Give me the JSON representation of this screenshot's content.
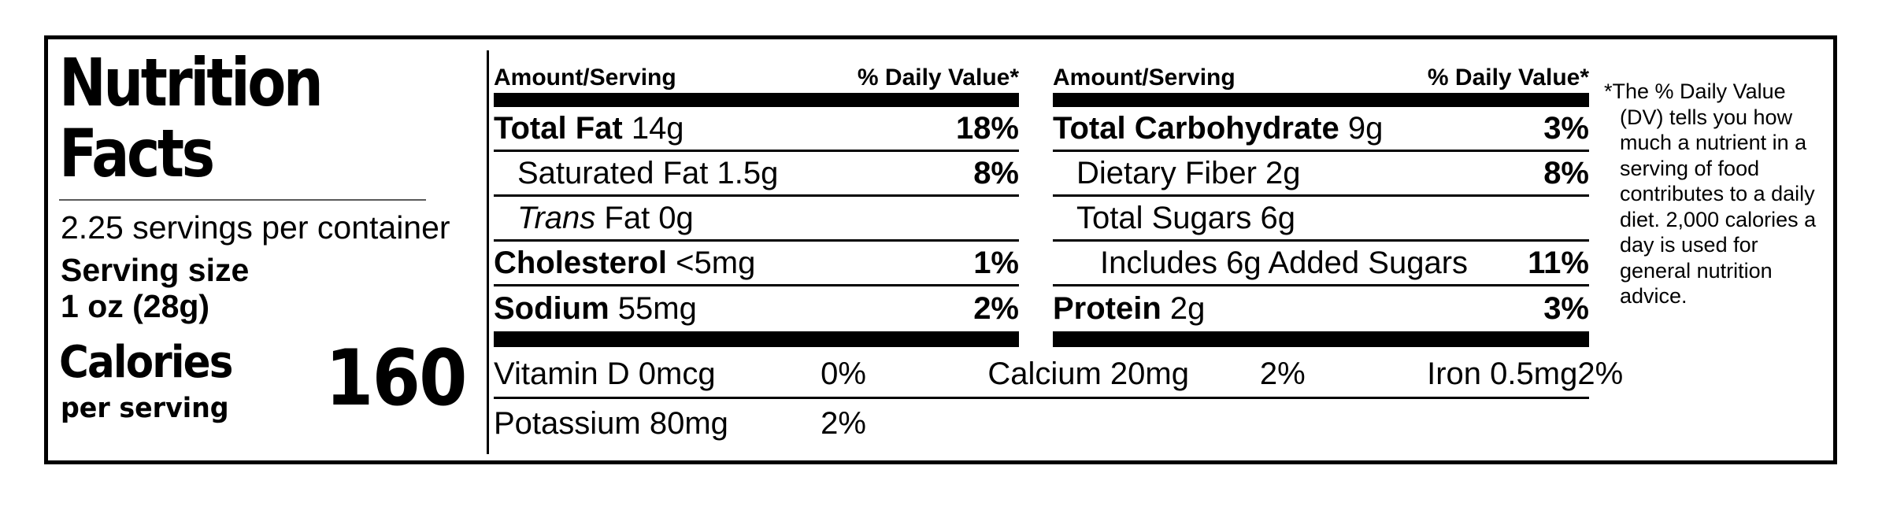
{
  "title": {
    "line1": "Nutrition",
    "line2": "Facts"
  },
  "servings_per_container": "2.25 servings per container",
  "serving_size_label": "Serving size",
  "serving_size_value": "1 oz (28g)",
  "calories_label": "Calories",
  "calories_sublabel": "per serving",
  "calories_value": "160",
  "columns": [
    {
      "header": {
        "amount": "Amount/Serving",
        "dv": "% Daily Value*"
      },
      "rows": [
        {
          "name": "Total Fat",
          "rest": "14g",
          "dv": "18%",
          "style": "bold",
          "indent": 0
        },
        {
          "name": "",
          "rest": "Saturated Fat 1.5g",
          "dv": "8%",
          "style": "plain",
          "indent": 1
        },
        {
          "name": "Trans",
          "rest": "Fat 0g",
          "dv": "",
          "style": "italic",
          "indent": 1
        },
        {
          "name": "Cholesterol",
          "rest": "<5mg",
          "dv": "1%",
          "style": "bold",
          "indent": 0
        },
        {
          "name": "Sodium",
          "rest": "55mg",
          "dv": "2%",
          "style": "bold",
          "indent": 0
        }
      ]
    },
    {
      "header": {
        "amount": "Amount/Serving",
        "dv": "% Daily Value*"
      },
      "rows": [
        {
          "name": "Total Carbohydrate",
          "rest": "9g",
          "dv": "3%",
          "style": "bold",
          "indent": 0
        },
        {
          "name": "",
          "rest": "Dietary Fiber 2g",
          "dv": "8%",
          "style": "plain",
          "indent": 1
        },
        {
          "name": "",
          "rest": "Total Sugars 6g",
          "dv": "",
          "style": "plain",
          "indent": 1
        },
        {
          "name": "",
          "rest": "Includes 6g Added Sugars",
          "dv": "11%",
          "style": "plain",
          "indent": 2
        },
        {
          "name": "Protein",
          "rest": "2g",
          "dv": "3%",
          "style": "bold",
          "indent": 0
        }
      ]
    }
  ],
  "micronutrients": {
    "row1": [
      {
        "name": "Vitamin D 0mcg",
        "dv": "0%"
      },
      {
        "name": "Calcium 20mg",
        "dv": "2%"
      },
      {
        "name": "Iron 0.5mg",
        "dv": "2%"
      }
    ],
    "row2": [
      {
        "name": "Potassium 80mg",
        "dv": "2%"
      }
    ]
  },
  "footnote_marker": "*",
  "footnote": "The % Daily Value (DV) tells you how much a nutrient in a serving of food contributes to a daily diet. 2,000 calories a day is used for general nutrition advice.",
  "colors": {
    "ink": "#000000",
    "background": "#ffffff"
  }
}
